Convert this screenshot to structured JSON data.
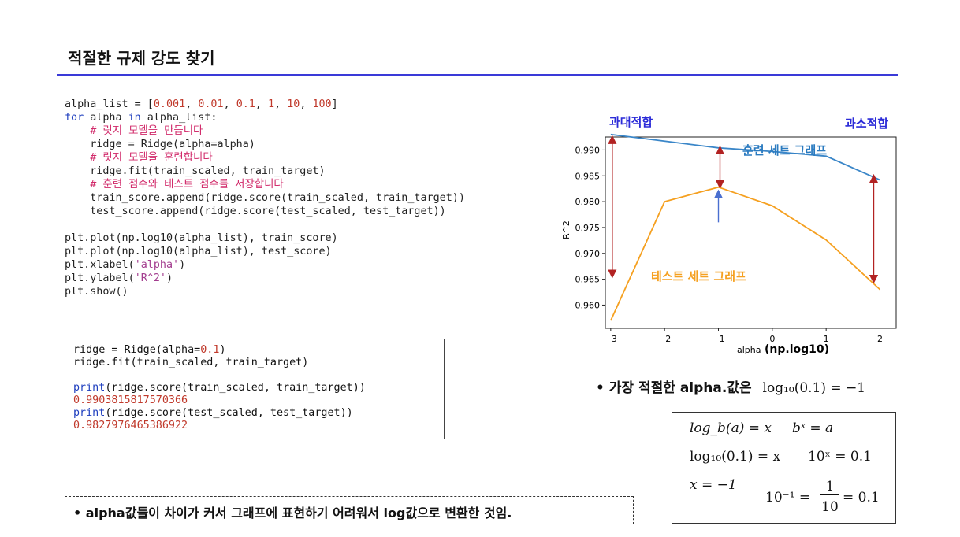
{
  "slide": {
    "title": "적절한 규제 강도 찾기",
    "code_top": [
      [
        [
          "alpha_list = [",
          ""
        ],
        [
          "0.001",
          "num"
        ],
        [
          ", ",
          ""
        ],
        [
          "0.01",
          "num"
        ],
        [
          ", ",
          ""
        ],
        [
          "0.1",
          "num"
        ],
        [
          ", ",
          ""
        ],
        [
          "1",
          "num"
        ],
        [
          ", ",
          ""
        ],
        [
          "10",
          "num"
        ],
        [
          ", ",
          ""
        ],
        [
          "100",
          "num"
        ],
        [
          "]",
          ""
        ]
      ],
      [
        [
          "for",
          "kw"
        ],
        [
          " alpha ",
          ""
        ],
        [
          "in",
          "kw"
        ],
        [
          " alpha_list:",
          ""
        ]
      ],
      [
        [
          "    ",
          ""
        ],
        [
          "# 릿지 모델을 만듭니다",
          "cmt"
        ]
      ],
      [
        [
          "    ridge = Ridge(alpha=alpha)",
          ""
        ]
      ],
      [
        [
          "    ",
          ""
        ],
        [
          "# 릿지 모델을 훈련합니다",
          "cmt"
        ]
      ],
      [
        [
          "    ridge.fit(train_scaled, train_target)",
          ""
        ]
      ],
      [
        [
          "    ",
          ""
        ],
        [
          "# 훈련 점수와 테스트 점수를 저장합니다",
          "cmt"
        ]
      ],
      [
        [
          "    train_score.append(ridge.score(train_scaled, train_target))",
          ""
        ]
      ],
      [
        [
          "    test_score.append(ridge.score(test_scaled, test_target))",
          ""
        ]
      ],
      [
        [
          "",
          ""
        ]
      ],
      [
        [
          "plt.plot(np.log10(alpha_list), train_score)",
          ""
        ]
      ],
      [
        [
          "plt.plot(np.log10(alpha_list), test_score)",
          ""
        ]
      ],
      [
        [
          "plt.xlabel(",
          ""
        ],
        [
          "'alpha'",
          "str"
        ],
        [
          ")",
          ""
        ]
      ],
      [
        [
          "plt.ylabel(",
          ""
        ],
        [
          "'R^2'",
          "str"
        ],
        [
          ")",
          ""
        ]
      ],
      [
        [
          "plt.show()",
          ""
        ]
      ]
    ],
    "code_box": [
      [
        [
          "ridge = Ridge(alpha=",
          ""
        ],
        [
          "0.1",
          "num"
        ],
        [
          ")",
          ""
        ]
      ],
      [
        [
          "ridge.fit(train_scaled, train_target)",
          ""
        ]
      ],
      [
        [
          "",
          ""
        ]
      ],
      [
        [
          "print",
          "kw"
        ],
        [
          "(ridge.score(train_scaled, train_target))",
          ""
        ]
      ],
      [
        [
          "0.9903815817570366",
          "out"
        ]
      ],
      [
        [
          "print",
          "kw"
        ],
        [
          "(ridge.score(test_scaled, test_target))",
          ""
        ]
      ],
      [
        [
          "0.9827976465386922",
          "out"
        ]
      ]
    ],
    "note": "•   alpha값들이 차이가 커서 그래프에 표현하기 어려워서 log값으로 변환한 것임.",
    "bullet": "•   가장 적절한 alpha.값은",
    "bullet_formula": "log₁₀(0.1) = −1",
    "formulas": {
      "f1a": "log_b(a) = x",
      "f1b": "bˣ = a",
      "f2a": "log₁₀(0.1) = x",
      "f2b": "10ˣ = 0.1",
      "f3a": "x = −1",
      "f3b": "10⁻¹ =",
      "frac_num": "1",
      "frac_den": "10",
      "f3c": "= 0.1"
    },
    "annotations": {
      "overfit": "과대적합",
      "underfit": "과소적합",
      "train_label": "훈련 세트 그래프",
      "test_label": "테스트 세트 그래프",
      "xaxis_extra": "(np.log10)"
    }
  },
  "chart_data": {
    "type": "line",
    "xlabel": "alpha",
    "ylabel": "R^2",
    "x": [
      -3,
      -2,
      -1,
      0,
      1,
      2
    ],
    "xlim": [
      -3.1,
      2.3
    ],
    "ylim": [
      0.9555,
      0.9925
    ],
    "xticks": [
      -3,
      -2,
      -1,
      0,
      1,
      2
    ],
    "yticks": [
      0.96,
      0.965,
      0.97,
      0.975,
      0.98,
      0.985,
      0.99
    ],
    "series": [
      {
        "values": [
          0.993,
          0.9917,
          0.9904,
          0.9897,
          0.9888,
          0.9842
        ],
        "color": "#3a86c8"
      },
      {
        "values": [
          0.957,
          0.98,
          0.9828,
          0.9792,
          0.9726,
          0.963
        ],
        "color": "#f5a020"
      }
    ],
    "colors": {
      "overfit": "#2b2bd8",
      "underfit": "#2b2bd8",
      "train_label": "#2b7bc0",
      "test_label": "#f5a020",
      "gap_arrow": "#b22222",
      "best_arrow": "#4a6fd0"
    }
  }
}
